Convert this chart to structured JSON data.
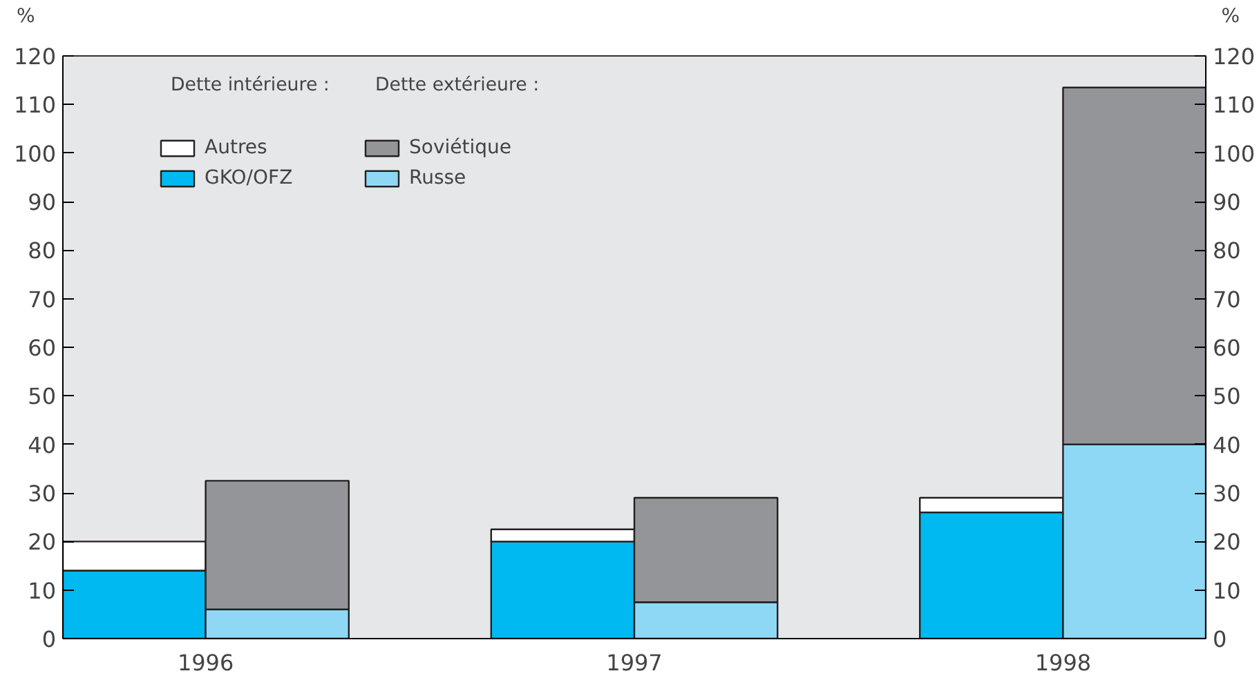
{
  "chart_data": {
    "type": "bar",
    "stacked": true,
    "ylabel": "%",
    "y2label": "%",
    "annotations": [
      "Dette intérieure :",
      "Dette extérieure :"
    ],
    "xlim": [
      1995.667,
      1998.333
    ],
    "xticks": [
      1996,
      1997,
      1998
    ],
    "ylim": [
      0,
      120
    ],
    "yticks": [
      0,
      10,
      20,
      30,
      40,
      50,
      60,
      70,
      80,
      90,
      100,
      110,
      120
    ],
    "y2lim": [
      0,
      120
    ],
    "y2ticks": [
      0,
      10,
      20,
      30,
      40,
      50,
      60,
      70,
      80,
      90,
      100,
      110,
      120
    ],
    "grid": false,
    "legend": "top left",
    "x": [
      1995.833,
      1996.167,
      1996.833,
      1997.167,
      1997.833,
      1998.167
    ],
    "series": [
      {
        "name": "GKO/OFZ",
        "color": "#00b9f0",
        "values": [
          14,
          null,
          20,
          null,
          26,
          null
        ]
      },
      {
        "name": "Autres",
        "color": "#ffffff",
        "values": [
          6,
          null,
          2.5,
          null,
          3,
          null
        ]
      },
      {
        "name": "Russe",
        "color": "#8ed8f6",
        "values": [
          null,
          6,
          null,
          7.5,
          null,
          40
        ]
      },
      {
        "name": "Soviétique",
        "color": "#939598",
        "values": [
          null,
          26.5,
          null,
          21.5,
          null,
          73.5
        ]
      }
    ]
  }
}
